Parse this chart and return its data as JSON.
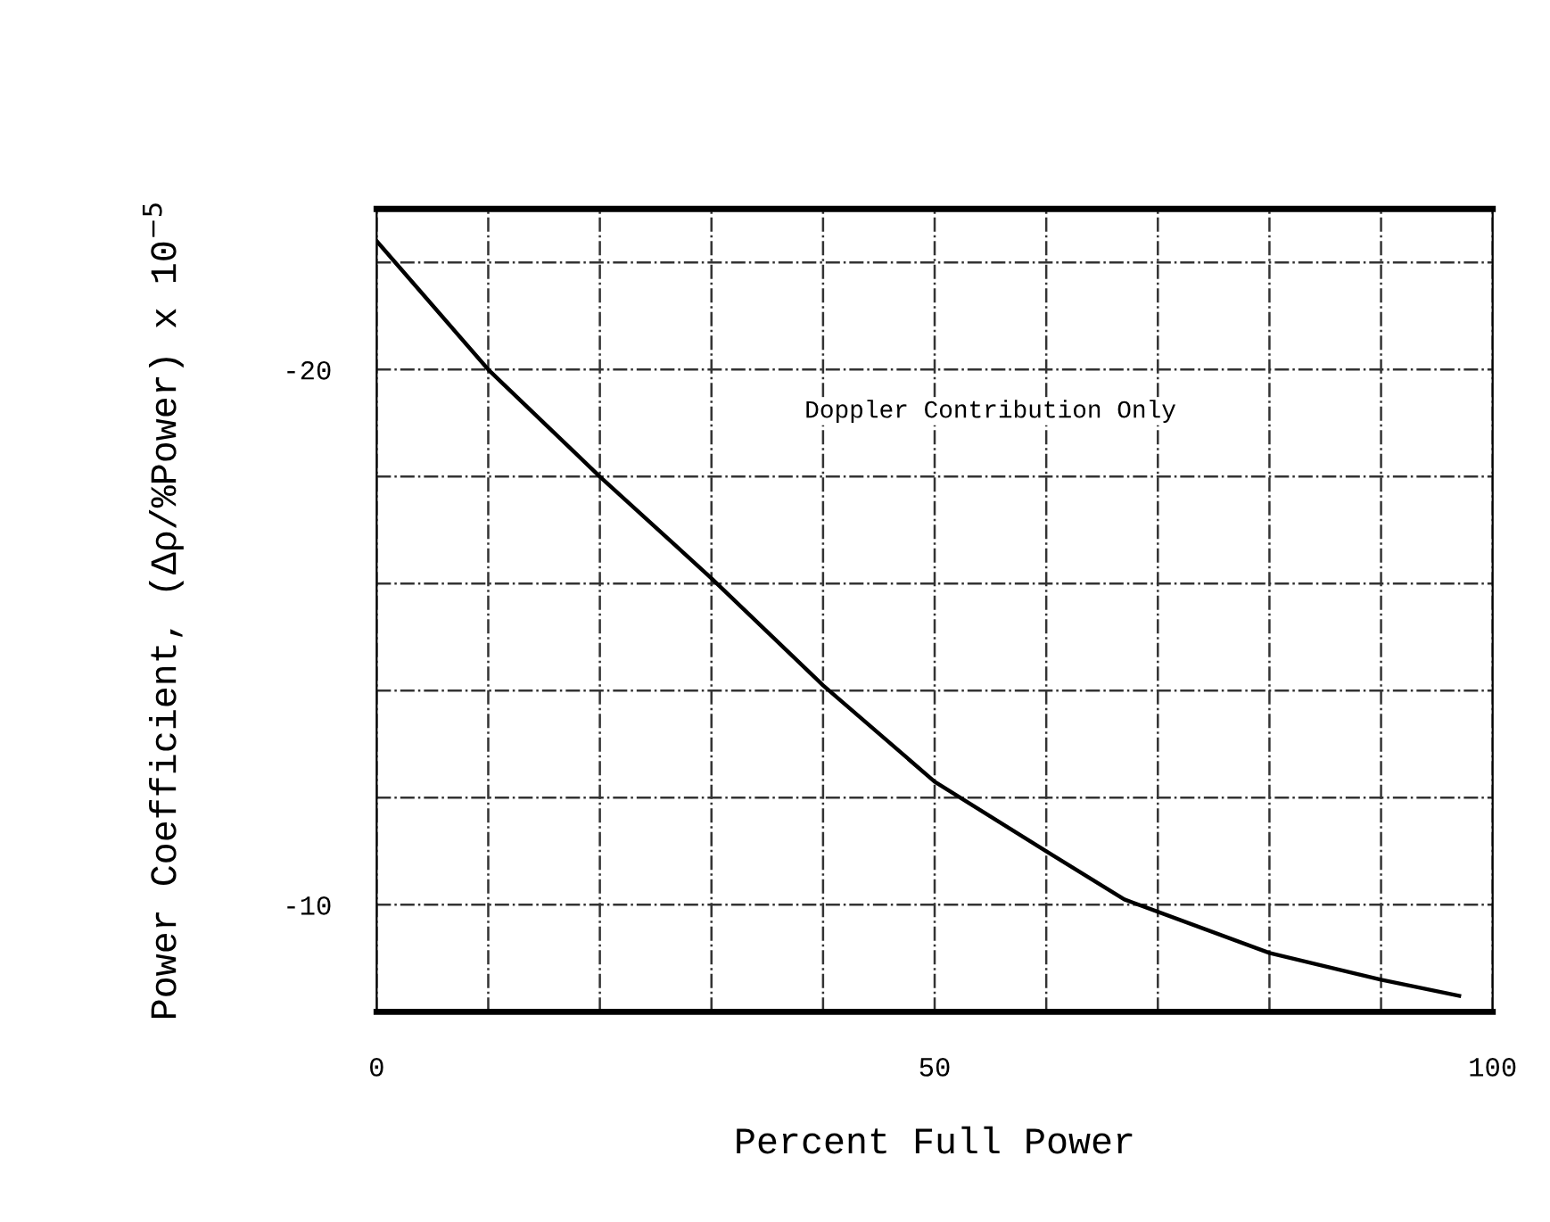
{
  "chart_data": {
    "type": "line",
    "xlabel": "Percent Full Power",
    "ylabel": "Power Coefficient, (Δρ/%Power) x 10$^{−5}$",
    "annotations": [
      "Doppler Contribution Only"
    ],
    "x": [
      0,
      5,
      10,
      20,
      30,
      40,
      50,
      60,
      67,
      80,
      90,
      97
    ],
    "series": [
      {
        "color": "#000000",
        "values": [
          -22.4,
          -21.2,
          -20.0,
          -18.0,
          -16.1,
          -14.1,
          -12.3,
          -11.0,
          -10.1,
          -9.1,
          -8.6,
          -8.3
        ]
      }
    ],
    "xlim": [
      0,
      100
    ],
    "ylim": [
      -8,
      -23
    ],
    "xticks": [
      0,
      {
        "value": 10,
        "label": null
      },
      {
        "value": 20,
        "label": null
      },
      {
        "value": 30,
        "label": null
      },
      {
        "value": 40,
        "label": null
      },
      50,
      {
        "value": 60,
        "label": null
      },
      {
        "value": 70,
        "label": null
      },
      {
        "value": 80,
        "label": null
      },
      {
        "value": 90,
        "label": null
      },
      100
    ],
    "yticks": [
      {
        "value": -22,
        "label": null
      },
      -20,
      {
        "value": -18,
        "label": null
      },
      {
        "value": -16,
        "label": null
      },
      {
        "value": -14,
        "label": null
      },
      {
        "value": -12,
        "label": null
      },
      -10
    ],
    "grid": true,
    "legend": false,
    "marker": "none",
    "line_style": "solid"
  }
}
